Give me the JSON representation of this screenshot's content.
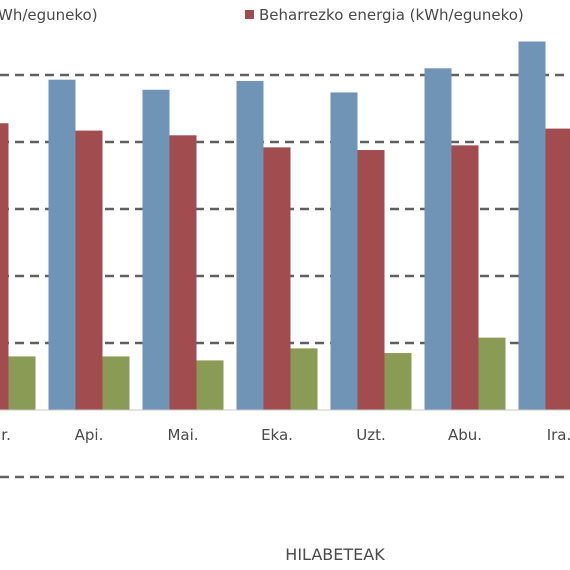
{
  "chart_data": {
    "type": "bar",
    "xlabel": "HILABETEAK",
    "categories": [
      "Mar.",
      "Api.",
      "Mai.",
      "Eka.",
      "Uzt.",
      "Abu.",
      "Ira."
    ],
    "series": [
      {
        "name": "",
        "color": "#7094b6",
        "values": [
          null,
          4.93,
          4.78,
          4.91,
          4.74,
          5.1,
          5.5
        ]
      },
      {
        "name": "Beharrezko energia (kWh/eguneko)",
        "color": "#a14d50",
        "values": [
          4.28,
          4.17,
          4.1,
          3.92,
          3.88,
          3.95,
          4.2
        ]
      },
      {
        "name": "",
        "color": "#8a9b56",
        "values": [
          0.8,
          0.8,
          0.74,
          0.92,
          0.85,
          1.08,
          null
        ]
      }
    ],
    "legend": [
      {
        "text": "Wh/eguneko)",
        "color": "#7094b6"
      },
      {
        "text": "Beharrezko energia (kWh/eguneko)",
        "color": "#a14d50"
      }
    ],
    "ylim": [
      -1,
      5.5
    ],
    "grid": true,
    "legend_placement": "top"
  }
}
